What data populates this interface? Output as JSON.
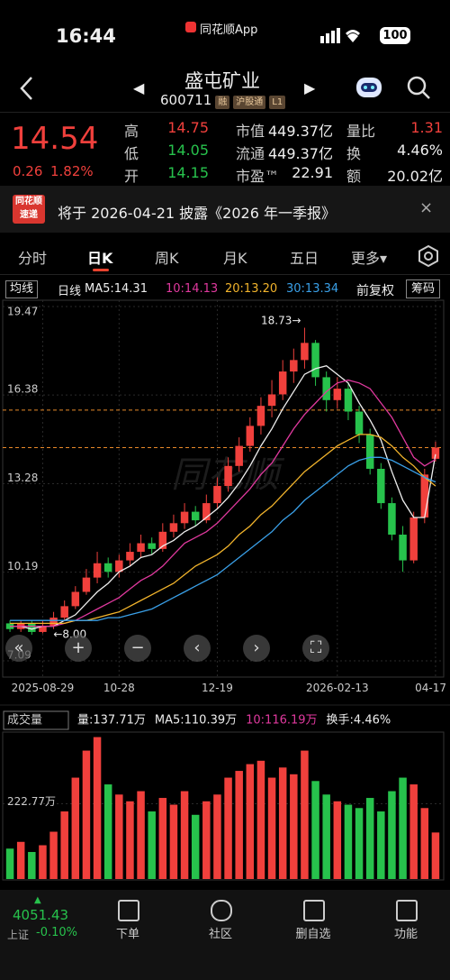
{
  "status": {
    "time": "16:44",
    "app": "同花顺App",
    "battery": "100"
  },
  "header": {
    "name": "盛屯矿业",
    "code": "600711",
    "tags": [
      "融",
      "沪股通",
      "L1"
    ]
  },
  "quote": {
    "price": "14.54",
    "change": "0.26",
    "pct": "1.82%",
    "stats": [
      {
        "label": "高",
        "value": "14.75",
        "color": "#f0403c"
      },
      {
        "label": "市值",
        "value": "449.37亿",
        "color": "#eeeeee"
      },
      {
        "label": "量比",
        "value": "1.31",
        "color": "#f0403c"
      },
      {
        "label": "低",
        "value": "14.05",
        "color": "#27c24c"
      },
      {
        "label": "流通",
        "value": "449.37亿",
        "color": "#eeeeee"
      },
      {
        "label": "换",
        "value": "4.46%",
        "color": "#eeeeee"
      },
      {
        "label": "开",
        "value": "14.15",
        "color": "#27c24c"
      },
      {
        "label": "市盈™",
        "value": "22.91",
        "color": "#eeeeee"
      },
      {
        "label": "额",
        "value": "20.02亿",
        "color": "#eeeeee"
      }
    ]
  },
  "banner": {
    "logo": [
      "同花顺",
      "速递"
    ],
    "text": "将于 2026-04-21 披露《2026 年一季报》"
  },
  "tabs": [
    "分时",
    "日K",
    "周K",
    "月K",
    "五日",
    "更多▾"
  ],
  "ma_bar": {
    "left": [
      "均线",
      "日线"
    ],
    "items": [
      {
        "text": "MA5:14.31",
        "color": "#eeeeee"
      },
      {
        "text": "10:14.13",
        "color": "#e0399e"
      },
      {
        "text": "20:13.20",
        "color": "#f2b42c"
      },
      {
        "text": "30:13.34",
        "color": "#3aa0e8"
      }
    ],
    "right": [
      "前复权",
      "筹码"
    ]
  },
  "chart_data": [
    {
      "type": "candlestick",
      "up_color": "#f0403c",
      "down_color": "#27c24c",
      "ylim": [
        7.09,
        19.47
      ],
      "yticks": [
        19.47,
        16.38,
        13.28,
        10.19,
        7.09
      ],
      "grid": true,
      "categories": [
        null,
        null,
        null,
        "2025-08-29",
        null,
        null,
        null,
        null,
        null,
        null,
        "10-28",
        null,
        null,
        null,
        null,
        null,
        null,
        null,
        null,
        "12-19",
        null,
        null,
        null,
        null,
        null,
        null,
        null,
        null,
        null,
        null,
        "2026-02-13",
        null,
        null,
        null,
        null,
        null,
        null,
        null,
        null,
        "04-17"
      ],
      "open": [
        8.4,
        8.2,
        8.4,
        8.1,
        8.3,
        8.6,
        9.0,
        9.5,
        10.0,
        10.5,
        10.2,
        10.6,
        10.9,
        11.2,
        11.0,
        11.6,
        11.9,
        12.3,
        12.0,
        12.6,
        13.2,
        13.9,
        14.6,
        15.3,
        16.0,
        16.4,
        17.2,
        17.6,
        18.2,
        17.0,
        16.2,
        16.6,
        15.8,
        15.0,
        13.8,
        12.6,
        11.5,
        10.6,
        12.1,
        14.15
      ],
      "high": [
        8.5,
        8.5,
        8.5,
        8.5,
        8.8,
        9.2,
        9.7,
        10.3,
        10.9,
        10.7,
        10.8,
        11.2,
        11.5,
        11.4,
        11.9,
        12.2,
        12.6,
        12.5,
        12.9,
        13.5,
        14.2,
        14.9,
        15.6,
        16.3,
        16.9,
        17.6,
        18.0,
        18.73,
        18.3,
        17.2,
        17.0,
        16.8,
        16.0,
        15.2,
        14.0,
        12.8,
        11.8,
        12.3,
        13.8,
        14.75
      ],
      "low": [
        8.1,
        8.1,
        8.0,
        8.05,
        8.2,
        8.5,
        8.9,
        9.4,
        9.8,
        10.0,
        10.0,
        10.4,
        10.7,
        10.8,
        10.9,
        11.4,
        11.7,
        11.8,
        11.9,
        12.4,
        13.0,
        13.7,
        14.4,
        15.0,
        15.6,
        16.2,
        16.8,
        17.3,
        16.7,
        15.8,
        15.9,
        15.5,
        14.7,
        13.6,
        12.4,
        11.3,
        10.2,
        10.5,
        11.9,
        14.05
      ],
      "close": [
        8.2,
        8.4,
        8.1,
        8.3,
        8.6,
        9.0,
        9.5,
        10.0,
        10.5,
        10.2,
        10.6,
        10.9,
        11.2,
        11.0,
        11.6,
        11.9,
        12.3,
        12.0,
        12.6,
        13.2,
        13.9,
        14.6,
        15.3,
        16.0,
        16.4,
        17.2,
        17.6,
        18.2,
        17.0,
        16.2,
        16.6,
        15.8,
        15.0,
        13.8,
        12.6,
        11.5,
        10.6,
        12.1,
        13.6,
        14.54
      ],
      "series": [
        {
          "name": "MA5",
          "color": "#eeeeee",
          "values": [
            8.3,
            8.3,
            8.2,
            8.3,
            8.3,
            8.5,
            8.7,
            9.1,
            9.5,
            9.8,
            10.2,
            10.4,
            10.7,
            10.8,
            11.1,
            11.3,
            11.6,
            11.8,
            12.1,
            12.4,
            12.8,
            13.3,
            13.9,
            14.6,
            15.2,
            15.9,
            16.5,
            17.1,
            17.3,
            17.4,
            17.1,
            16.8,
            16.1,
            15.5,
            14.8,
            13.7,
            12.7,
            12.1,
            12.1,
            14.31
          ]
        },
        {
          "name": "MA10",
          "color": "#e0399e",
          "values": [
            8.3,
            8.3,
            8.3,
            8.3,
            8.3,
            8.4,
            8.5,
            8.7,
            8.9,
            9.1,
            9.3,
            9.6,
            9.9,
            10.1,
            10.4,
            10.8,
            11.2,
            11.4,
            11.6,
            11.9,
            12.3,
            12.7,
            13.1,
            13.6,
            14.0,
            14.6,
            15.2,
            15.7,
            16.1,
            16.5,
            16.8,
            16.9,
            16.8,
            16.6,
            16.1,
            15.6,
            14.9,
            14.2,
            13.9,
            14.13
          ]
        },
        {
          "name": "MA20",
          "color": "#f2b42c",
          "values": [
            8.4,
            8.4,
            8.4,
            8.4,
            8.4,
            8.4,
            8.5,
            8.5,
            8.6,
            8.7,
            8.8,
            9.0,
            9.2,
            9.4,
            9.6,
            9.8,
            10.1,
            10.4,
            10.6,
            10.8,
            11.1,
            11.5,
            11.8,
            12.2,
            12.5,
            12.9,
            13.3,
            13.7,
            14.0,
            14.3,
            14.6,
            14.8,
            15.0,
            15.0,
            14.9,
            14.6,
            14.2,
            13.9,
            13.5,
            13.2
          ]
        },
        {
          "name": "MA30",
          "color": "#3aa0e8",
          "values": [
            8.5,
            8.5,
            8.5,
            8.5,
            8.5,
            8.5,
            8.5,
            8.5,
            8.5,
            8.6,
            8.6,
            8.7,
            8.8,
            8.9,
            9.1,
            9.3,
            9.5,
            9.7,
            9.9,
            10.1,
            10.4,
            10.7,
            11.0,
            11.3,
            11.6,
            12.0,
            12.3,
            12.7,
            13.0,
            13.3,
            13.6,
            13.9,
            14.1,
            14.2,
            14.2,
            14.1,
            13.9,
            13.7,
            13.5,
            13.34
          ]
        }
      ],
      "dashed_levels": [
        15.85,
        14.54
      ],
      "level_color": "#e8892a",
      "annotations": [
        "18.73→",
        "←8.00"
      ]
    },
    {
      "type": "bar",
      "header": [
        {
          "text": "成交量",
          "color": "#cccccc"
        },
        {
          "text": "量:137.71万",
          "color": "#eeeeee"
        },
        {
          "text": "MA5:110.39万",
          "color": "#eeeeee"
        },
        {
          "text": "10:116.19万",
          "color": "#e0399e"
        },
        {
          "text": "换手:4.46%",
          "color": "#eeeeee"
        }
      ],
      "ylim": [
        0,
        445.54
      ],
      "yticks": [
        {
          "value": 222.77,
          "label": "222.77万"
        }
      ],
      "values": [
        90,
        110,
        80,
        100,
        140,
        200,
        300,
        380,
        420,
        280,
        250,
        230,
        260,
        200,
        240,
        220,
        260,
        190,
        230,
        250,
        300,
        320,
        340,
        350,
        300,
        330,
        310,
        380,
        290,
        250,
        230,
        220,
        210,
        240,
        200,
        260,
        300,
        280,
        210,
        137.71
      ]
    }
  ],
  "nav": {
    "index_value": "4051.43",
    "index_name": "上证",
    "index_pct": "-0.10%",
    "items": [
      "下单",
      "社区",
      "删自选",
      "功能"
    ]
  }
}
